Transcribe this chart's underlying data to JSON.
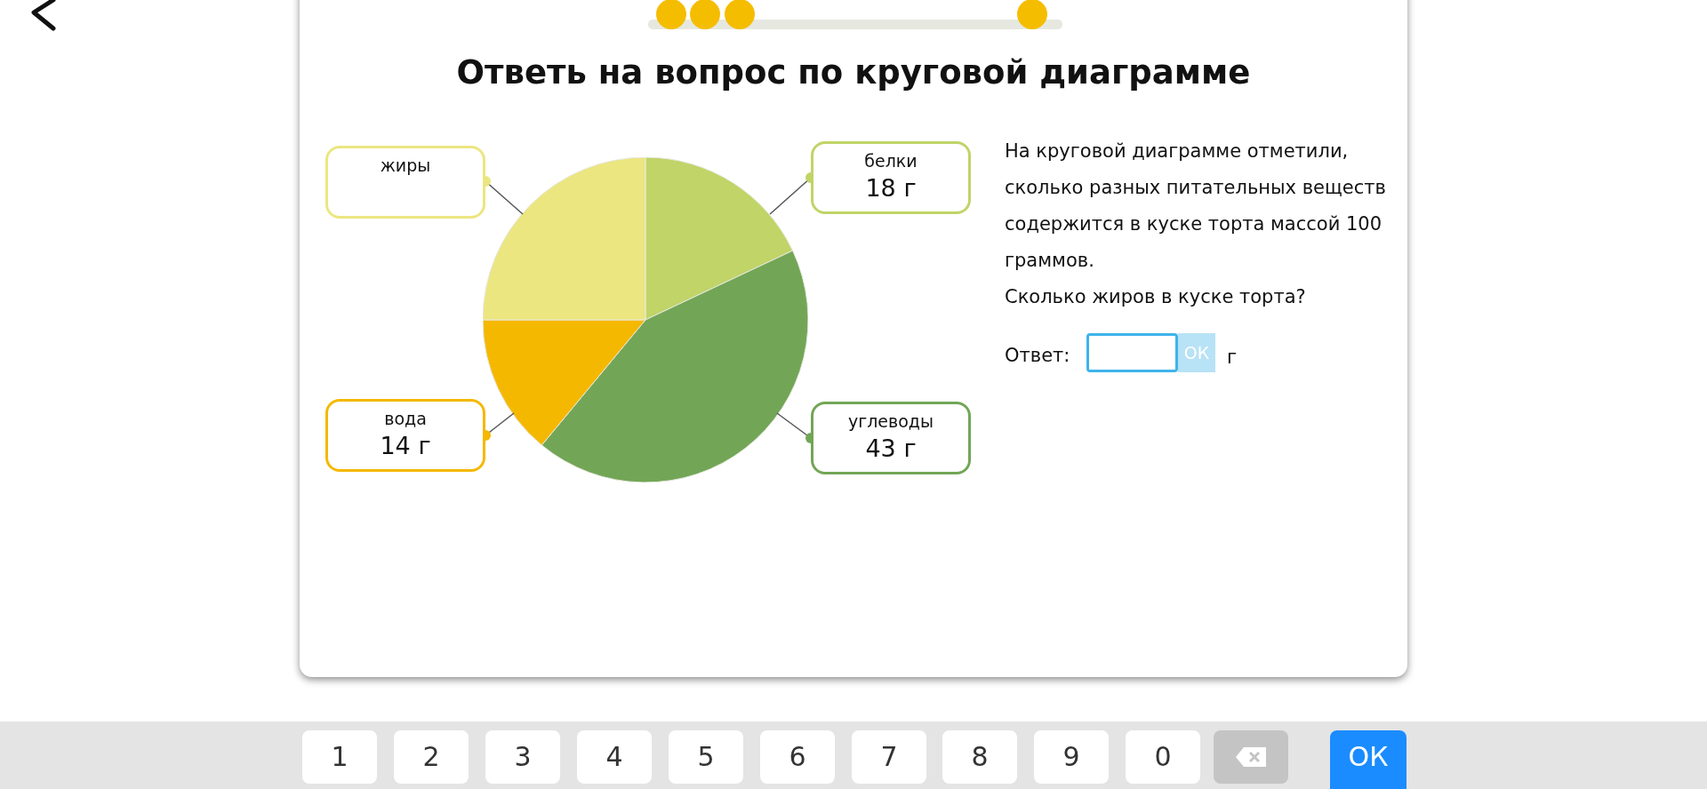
{
  "chart_data": {
    "type": "pie",
    "title": "Ответь на вопрос по круговой диаграмме",
    "categories": [
      "белки",
      "углеводы",
      "вода",
      "жиры"
    ],
    "values": [
      18,
      43,
      14,
      25
    ],
    "value_labels": [
      "18 г",
      "43 г",
      "14 г",
      null
    ],
    "colors": [
      "#c0d468",
      "#72a656",
      "#f5b800",
      "#ebe680"
    ],
    "annotations": [
      "На круговой диаграмме отметили, сколько разных питательных веществ содержится в куске торта массой 100 граммов.",
      "Сколько жиров в куске торта?",
      "Ответ:",
      "ОК",
      "г",
      "1",
      "2",
      "3",
      "4",
      "5",
      "6",
      "7",
      "8",
      "9",
      "0",
      "ОК"
    ]
  }
}
